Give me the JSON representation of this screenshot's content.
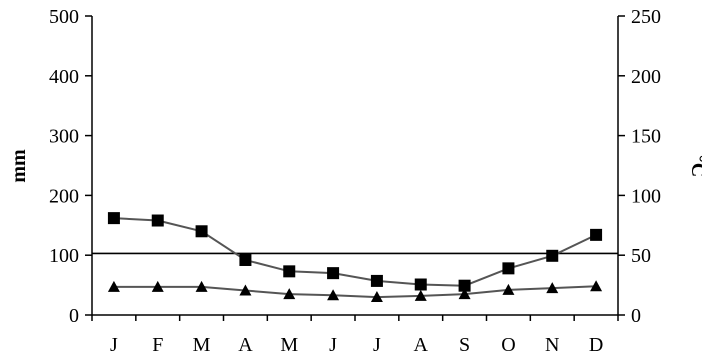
{
  "chart_data": {
    "type": "line",
    "categories": [
      "J",
      "F",
      "M",
      "A",
      "M",
      "J",
      "J",
      "A",
      "S",
      "O",
      "N",
      "D"
    ],
    "ylabel": "mm",
    "y2label": "°C",
    "ylim": [
      0,
      500
    ],
    "y2lim": [
      0,
      250
    ],
    "yticks": [
      "0",
      "100",
      "200",
      "300",
      "400",
      "500"
    ],
    "y2ticks": [
      "0",
      "50",
      "100",
      "150",
      "200",
      "250"
    ],
    "grid": false,
    "series": [
      {
        "marker": "square",
        "axis": "left",
        "color": "#000000",
        "line_color": "#555555",
        "values": [
          162,
          158,
          140,
          92,
          73,
          70,
          57,
          51,
          49,
          78,
          99,
          134
        ]
      },
      {
        "marker": "triangle",
        "axis": "right",
        "color": "#000000",
        "line_color": "#555555",
        "values": [
          23.5,
          23.5,
          23.5,
          20.5,
          17.5,
          16.5,
          15,
          16,
          17.5,
          21,
          22.5,
          24
        ]
      }
    ],
    "reference_lines": [
      {
        "axis": "left",
        "value": 103
      }
    ]
  }
}
